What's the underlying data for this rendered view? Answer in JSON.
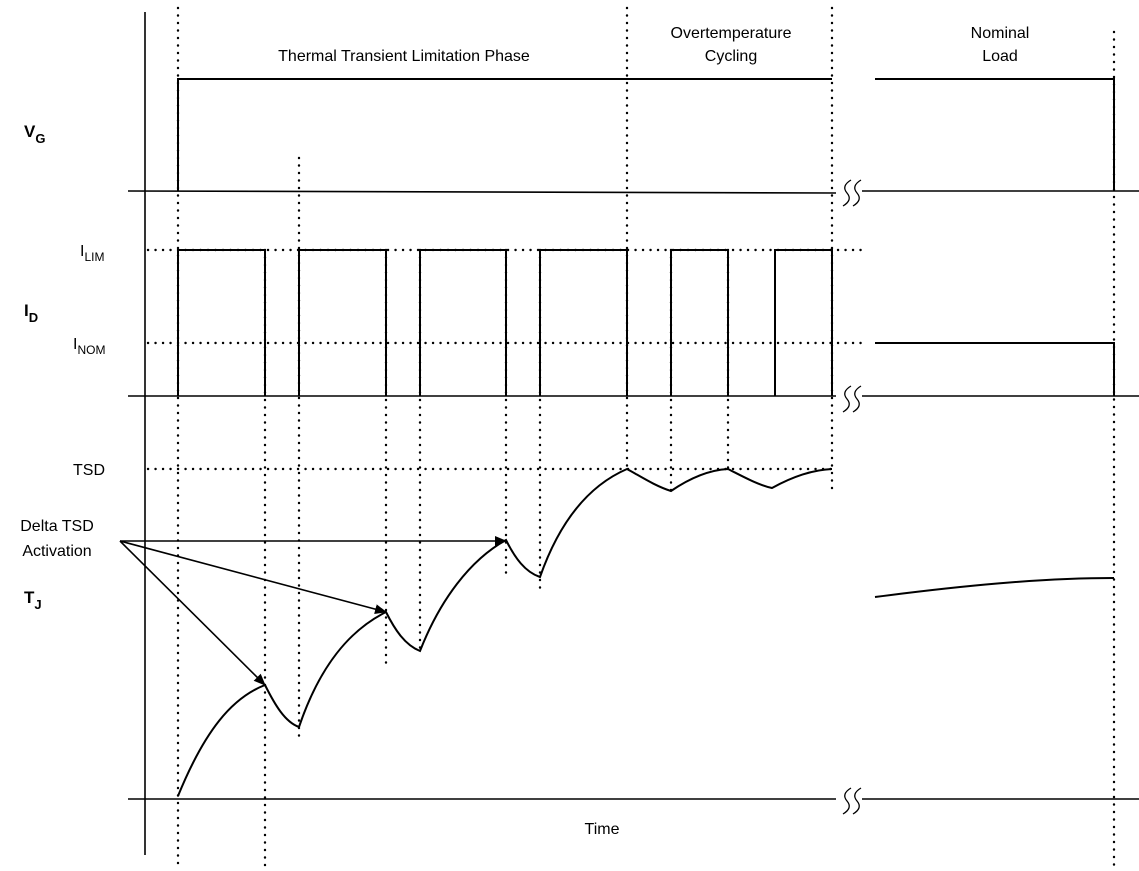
{
  "phases": {
    "thermal_transient": "Thermal Transient Limitation Phase",
    "overtemp_line1": "Overtemperature",
    "overtemp_line2": "Cycling",
    "nominal_line1": "Nominal",
    "nominal_line2": "Load"
  },
  "signals": {
    "vg_main": "V",
    "vg_sub": "G",
    "id_main": "I",
    "id_sub": "D",
    "tj_main": "T",
    "tj_sub": "J"
  },
  "levels": {
    "ilim_main": "I",
    "ilim_sub": "LIM",
    "inom_main": "I",
    "inom_sub": "NOM",
    "tsd": "TSD"
  },
  "annotations": {
    "delta_line1": "Delta TSD",
    "delta_line2": "Activation"
  },
  "axis": {
    "time": "Time"
  }
}
